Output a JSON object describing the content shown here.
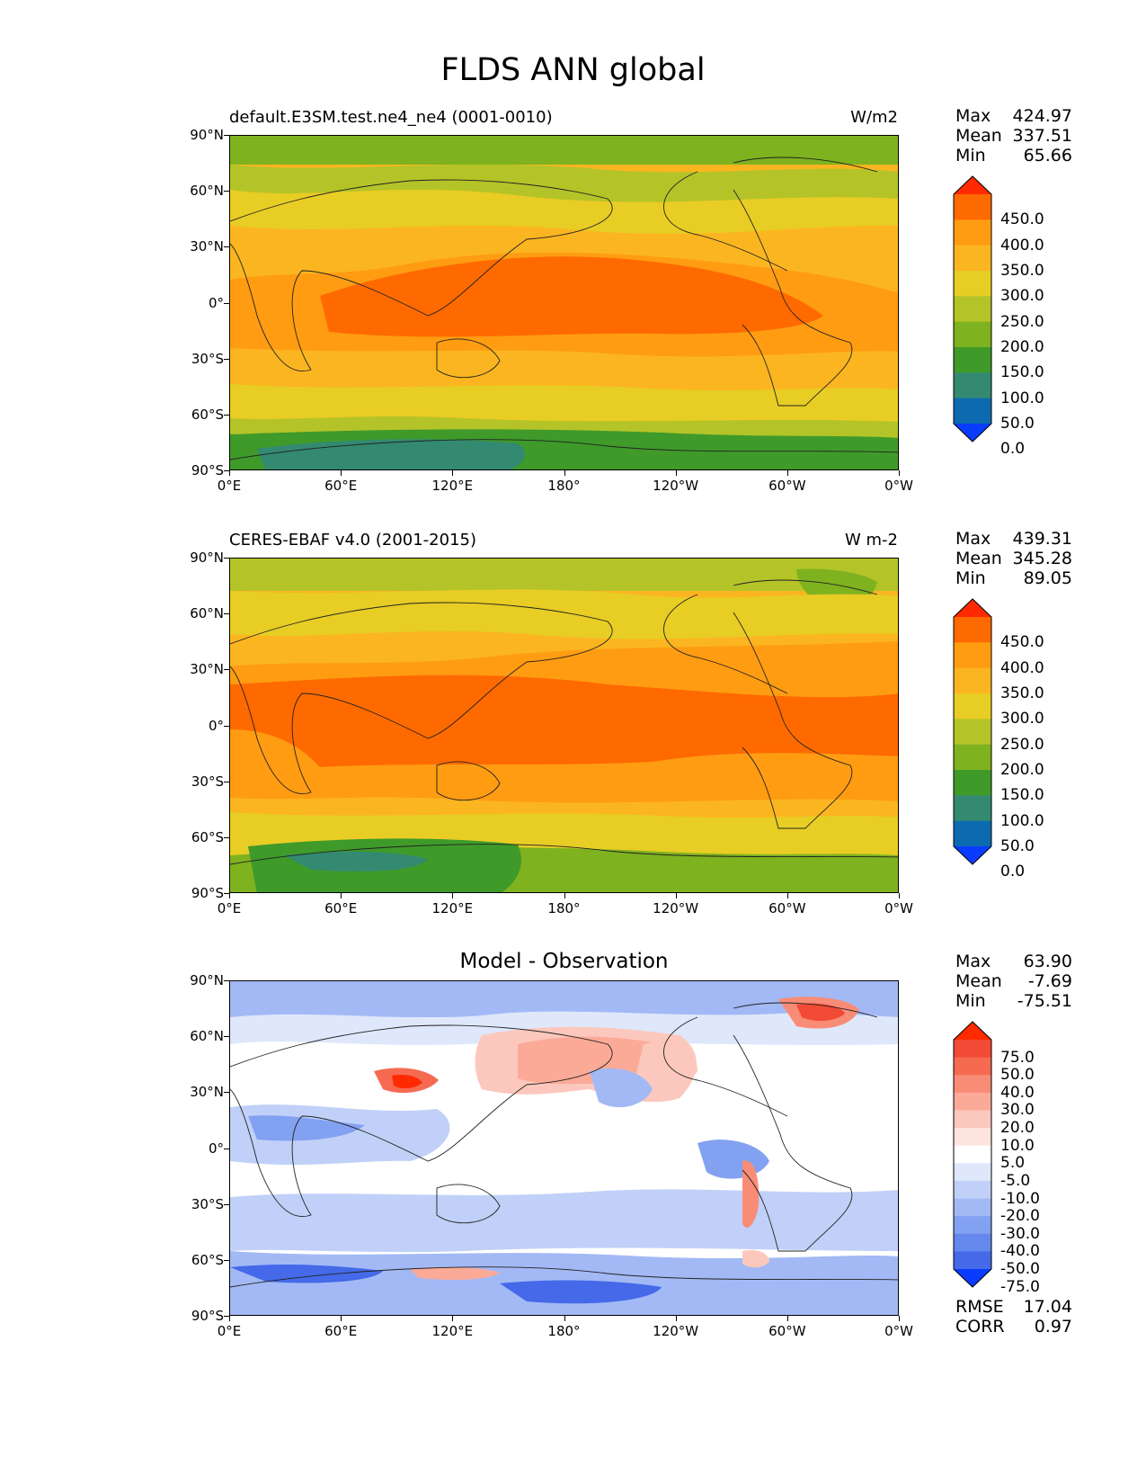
{
  "figure_title": "FLDS ANN global",
  "panels": [
    {
      "title_left": "default.E3SM.test.ne4_ne4 (0001-0010)",
      "title_right": "W/m2",
      "title_center": "",
      "stats": [
        {
          "label": "Max",
          "value": "424.97"
        },
        {
          "label": "Mean",
          "value": "337.51"
        },
        {
          "label": "Min",
          "value": "65.66"
        }
      ],
      "colorbar_labels": [
        "450.0",
        "400.0",
        "350.0",
        "300.0",
        "250.0",
        "200.0",
        "150.0",
        "100.0",
        "50.0",
        "0.0"
      ],
      "colorbar_colors": [
        "#ff2a00",
        "#ff6a00",
        "#ff9c12",
        "#fbb520",
        "#e8cd24",
        "#b4c428",
        "#7fb21f",
        "#3f9a2a",
        "#338a71",
        "#0c6bb0",
        "#0a3cff"
      ]
    },
    {
      "title_left": "CERES-EBAF v4.0 (2001-2015)",
      "title_right": "W m-2",
      "title_center": "",
      "stats": [
        {
          "label": "Max",
          "value": "439.31"
        },
        {
          "label": "Mean",
          "value": "345.28"
        },
        {
          "label": "Min",
          "value": "89.05"
        }
      ],
      "colorbar_labels": [
        "450.0",
        "400.0",
        "350.0",
        "300.0",
        "250.0",
        "200.0",
        "150.0",
        "100.0",
        "50.0",
        "0.0"
      ],
      "colorbar_colors": [
        "#ff2a00",
        "#ff6a00",
        "#ff9c12",
        "#fbb520",
        "#e8cd24",
        "#b4c428",
        "#7fb21f",
        "#3f9a2a",
        "#338a71",
        "#0c6bb0",
        "#0a3cff"
      ]
    },
    {
      "title_left": "",
      "title_right": "",
      "title_center": "Model - Observation",
      "stats": [
        {
          "label": "Max",
          "value": "63.90"
        },
        {
          "label": "Mean",
          "value": "-7.69"
        },
        {
          "label": "Min",
          "value": "-75.51"
        }
      ],
      "colorbar_labels": [
        "75.0",
        "50.0",
        "40.0",
        "30.0",
        "20.0",
        "10.0",
        "5.0",
        "-5.0",
        "-10.0",
        "-20.0",
        "-30.0",
        "-40.0",
        "-50.0",
        "-75.0"
      ],
      "colorbar_colors": [
        "#ff2a00",
        "#f24a35",
        "#f66a52",
        "#f98c76",
        "#fbaa98",
        "#fcc8bd",
        "#fde4de",
        "#ffffff",
        "#dfe7fb",
        "#c0d0f8",
        "#a2b9f5",
        "#83a1f1",
        "#6488ec",
        "#4569e8",
        "#0a3cff"
      ],
      "extra_stats": [
        {
          "label": "RMSE",
          "value": "17.04"
        },
        {
          "label": "CORR",
          "value": "0.97"
        }
      ]
    }
  ],
  "axes": {
    "lat_ticks": [
      "90°N",
      "60°N",
      "30°N",
      "0°",
      "30°S",
      "60°S",
      "90°S"
    ],
    "lon_ticks": [
      "0°E",
      "60°E",
      "120°E",
      "180°",
      "120°W",
      "60°W",
      "0°W"
    ]
  }
}
